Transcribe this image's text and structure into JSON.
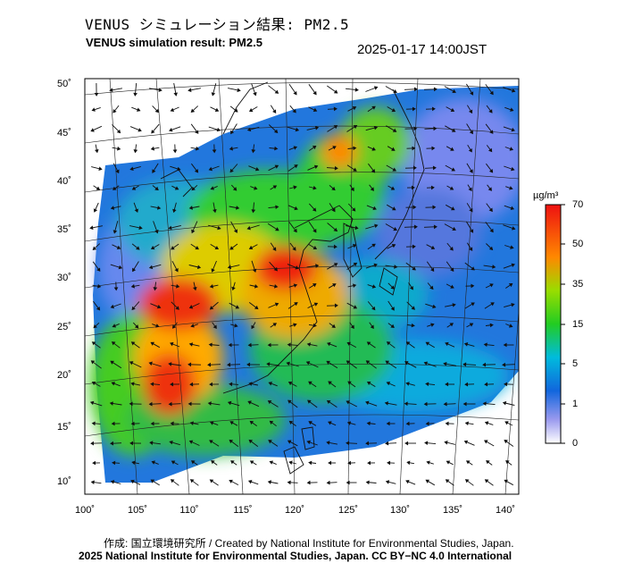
{
  "header": {
    "title_jp": "VENUS シミュレーション結果: PM2.5",
    "title_en": "VENUS simulation result: PM2.5",
    "timestamp": "2025-01-17 14:00JST"
  },
  "map": {
    "lat_ticks": [
      "50˚",
      "45˚",
      "40˚",
      "35˚",
      "30˚",
      "25˚",
      "20˚",
      "15˚",
      "10˚"
    ],
    "lon_ticks": [
      "100˚",
      "105˚",
      "110˚",
      "115˚",
      "120˚",
      "125˚",
      "130˚",
      "135˚",
      "140˚"
    ]
  },
  "colorbar": {
    "unit": "µg/m³",
    "ticks": [
      "70",
      "50",
      "35",
      "15",
      "5",
      "1",
      "0"
    ],
    "colors": [
      "#ee1111",
      "#ff8800",
      "#eedd00",
      "#22cc22",
      "#00bbdd",
      "#1166dd",
      "#ffffff"
    ]
  },
  "footer": {
    "credit": "作成: 国立環境研究所 / Created by National Institute for Environmental Studies, Japan.",
    "license": "2025 National Institute for Environmental Studies, Japan. CC BY−NC 4.0 International"
  }
}
